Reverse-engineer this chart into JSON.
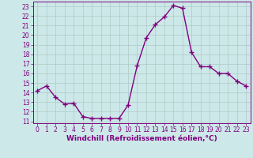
{
  "x": [
    0,
    1,
    2,
    3,
    4,
    5,
    6,
    7,
    8,
    9,
    10,
    11,
    12,
    13,
    14,
    15,
    16,
    17,
    18,
    19,
    20,
    21,
    22,
    23
  ],
  "y": [
    14.2,
    14.7,
    13.5,
    12.8,
    12.9,
    11.5,
    11.3,
    11.3,
    11.3,
    11.3,
    12.7,
    16.8,
    19.7,
    21.1,
    21.9,
    23.1,
    22.8,
    18.2,
    16.7,
    16.7,
    16.0,
    16.0,
    15.2,
    14.7
  ],
  "line_color": "#800080",
  "marker": "+",
  "marker_size": 4,
  "marker_linewidth": 1.0,
  "bg_color": "#cce8e8",
  "grid_color": "#b0c8c8",
  "xlabel": "Windchill (Refroidissement éolien,°C)",
  "xlabel_color": "#800080",
  "ylim": [
    10.8,
    23.5
  ],
  "xlim": [
    -0.5,
    23.5
  ],
  "yticks": [
    11,
    12,
    13,
    14,
    15,
    16,
    17,
    18,
    19,
    20,
    21,
    22,
    23
  ],
  "xticks": [
    0,
    1,
    2,
    3,
    4,
    5,
    6,
    7,
    8,
    9,
    10,
    11,
    12,
    13,
    14,
    15,
    16,
    17,
    18,
    19,
    20,
    21,
    22,
    23
  ],
  "tick_fontsize": 5.5,
  "xlabel_fontsize": 6.5,
  "line_width": 1.0
}
